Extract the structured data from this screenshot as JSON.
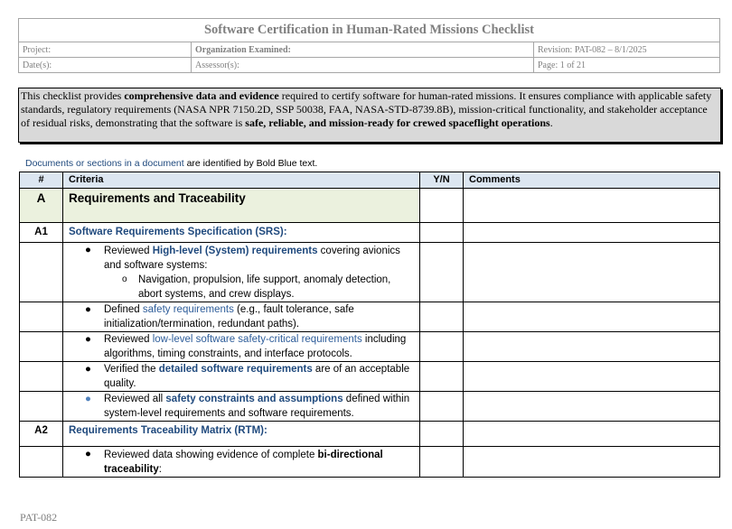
{
  "header": {
    "title": "Software Certification in Human-Rated Missions Checklist",
    "project": "Project:",
    "organization": "Organization Examined:",
    "revision": "Revision: PAT-082 – 8/1/2025",
    "dates": "Date(s):",
    "assessor": "Assessor(s):",
    "page": "Page:  1 of 21"
  },
  "description": [
    {
      "t": "This checklist provides ",
      "s": "n"
    },
    {
      "t": "comprehensive data and evidence",
      "s": "b"
    },
    {
      "t": " required to certify software for human-rated missions. It ensures compliance with applicable safety standards, regulatory requirements (NASA NPR 7150.2D, SSP 50038, FAA, NASA-STD-8739.8B), mission-critical functionality, and stakeholder acceptance of residual risks, demonstrating that the software is ",
      "s": "n"
    },
    {
      "t": "safe, reliable, and mission-ready for crewed spaceflight operations",
      "s": "b"
    },
    {
      "t": ".",
      "s": "n"
    }
  ],
  "note": {
    "blue": "Documents or sections in a document",
    "rest": " are identified by Bold Blue text."
  },
  "table": {
    "headers": [
      "#",
      "Criteria",
      "Y/N",
      "Comments"
    ],
    "section": {
      "id": "A",
      "title": "Requirements and Traceability"
    },
    "a1": {
      "id": "A1",
      "title": "Software Requirements Specification (SRS):"
    },
    "bullets1": [
      [
        {
          "t": "Reviewed ",
          "s": "n"
        },
        {
          "t": "High-level (System) requirements",
          "s": "blue"
        },
        {
          "t": " covering avionics and software systems:",
          "s": "n"
        }
      ],
      [
        {
          "t": "Defined ",
          "s": "n"
        },
        {
          "t": "safety requirements",
          "s": "lblue"
        },
        {
          "t": " (e.g., fault tolerance, safe initialization/termination, redundant paths).",
          "s": "n"
        }
      ],
      [
        {
          "t": "Reviewed ",
          "s": "n"
        },
        {
          "t": "low-level software safety-critical requirements",
          "s": "lblue"
        },
        {
          "t": " including algorithms, timing constraints, and interface protocols.",
          "s": "n"
        }
      ],
      [
        {
          "t": "Verified the ",
          "s": "n"
        },
        {
          "t": "detailed software requirements",
          "s": "blue"
        },
        {
          "t": " are of an acceptable quality.",
          "s": "n"
        }
      ],
      [
        {
          "t": "Reviewed all ",
          "s": "n"
        },
        {
          "t": "safety constraints and assumptions",
          "s": "blue"
        },
        {
          "t": " defined within system-level requirements and software requirements.",
          "s": "n"
        }
      ]
    ],
    "subbullet": "Navigation, propulsion, life support, anomaly detection, abort systems, and crew displays.",
    "a2": {
      "id": "A2",
      "title": "Requirements Traceability Matrix (RTM):"
    },
    "bullets2": [
      [
        {
          "t": "Reviewed data showing evidence of complete ",
          "s": "n"
        },
        {
          "t": "bi-directional traceability",
          "s": "b"
        },
        {
          "t": ":",
          "s": "n"
        }
      ]
    ]
  },
  "footer": "PAT-082",
  "colors": {
    "blue": "#1f497d",
    "header_bg": "#dce6f1",
    "section_bg": "#ebf1de",
    "desc_bg": "#d9d9d9"
  }
}
